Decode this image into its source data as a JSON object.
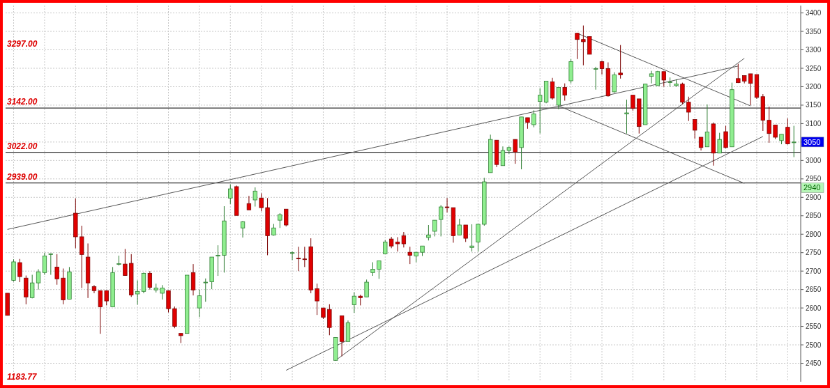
{
  "chart_data": {
    "type": "candlestick",
    "categories": [
      null,
      null,
      null,
      null,
      null,
      null,
      null,
      null,
      null,
      null,
      null,
      null,
      null,
      null,
      null,
      null,
      null,
      null,
      null,
      null,
      null,
      null,
      null,
      null,
      null,
      null,
      null,
      null,
      null,
      null,
      null,
      null,
      null,
      null,
      null,
      null,
      null,
      null,
      null,
      null,
      null,
      null,
      null,
      null,
      null,
      null,
      null,
      null,
      null,
      null,
      null,
      null,
      null,
      null,
      null,
      null,
      null,
      null,
      null,
      null,
      null,
      null,
      null,
      null,
      null,
      null,
      null,
      null,
      null,
      null,
      null,
      null,
      null,
      null,
      null,
      null,
      null,
      null,
      null,
      null,
      null,
      null,
      null,
      null,
      null,
      null,
      null,
      null,
      null,
      null,
      null,
      null,
      null,
      null,
      null,
      null,
      null,
      null,
      null,
      null,
      null,
      null,
      null,
      null,
      null,
      null,
      null,
      null,
      null,
      null,
      null,
      null,
      null,
      null,
      null,
      null,
      null,
      null,
      null,
      null,
      null,
      null,
      null,
      null,
      null,
      null,
      null,
      null
    ],
    "ohlc": [
      [
        2640,
        2640,
        2580,
        2580
      ],
      [
        2675,
        2732,
        2672,
        2725
      ],
      [
        2723,
        2733,
        2670,
        2685
      ],
      [
        2681,
        2688,
        2610,
        2630
      ],
      [
        2628,
        2690,
        2626,
        2668
      ],
      [
        2668,
        2705,
        2650,
        2698
      ],
      [
        2696,
        2750,
        2690,
        2741
      ],
      [
        2745,
        2748,
        2690,
        2747
      ],
      [
        2711,
        2746,
        2663,
        2679
      ],
      [
        2681,
        2707,
        2610,
        2622
      ],
      [
        2624,
        2711,
        2624,
        2698
      ],
      [
        2857,
        2897,
        2762,
        2793
      ],
      [
        2793,
        2823,
        2654,
        2745
      ],
      [
        2738,
        2775,
        2627,
        2668
      ],
      [
        2658,
        2662,
        2640,
        2647
      ],
      [
        2647,
        2647,
        2530,
        2603
      ],
      [
        2647,
        2647,
        2607,
        2619
      ],
      [
        2603,
        2711,
        2603,
        2696
      ],
      [
        2719,
        2742,
        2715,
        2720
      ],
      [
        2719,
        2760,
        2688,
        2688
      ],
      [
        2721,
        2746,
        2630,
        2635
      ],
      [
        2638,
        2675,
        2609,
        2645
      ],
      [
        2645,
        2696,
        2640,
        2694
      ],
      [
        2694,
        2700,
        2650,
        2656
      ],
      [
        2649,
        2666,
        2642,
        2654
      ],
      [
        2640,
        2662,
        2623,
        2654
      ],
      [
        2647,
        2647,
        2588,
        2598
      ],
      [
        2598,
        2604,
        2545,
        2550
      ],
      [
        2531,
        2531,
        2505,
        2525
      ],
      [
        2531,
        2689,
        2531,
        2689
      ],
      [
        2696,
        2719,
        2634,
        2649
      ],
      [
        2600,
        2650,
        2575,
        2633
      ],
      [
        2669,
        2680,
        2617,
        2670
      ],
      [
        2671,
        2738,
        2651,
        2738
      ],
      [
        2742,
        2770,
        2687,
        2743
      ],
      [
        2743,
        2876,
        2696,
        2836
      ],
      [
        2898,
        2935,
        2882,
        2923
      ],
      [
        2929,
        2932,
        2851,
        2851
      ],
      [
        2817,
        2836,
        2791,
        2834
      ],
      [
        2883,
        2904,
        2866,
        2866
      ],
      [
        2893,
        2927,
        2875,
        2917
      ],
      [
        2898,
        2911,
        2862,
        2872
      ],
      [
        2872,
        2898,
        2743,
        2796
      ],
      [
        2798,
        2828,
        2796,
        2817
      ],
      [
        2838,
        2857,
        2817,
        2853
      ],
      [
        2868,
        2868,
        2821,
        2825
      ],
      [
        2749,
        2753,
        2730,
        2750
      ],
      [
        2735,
        2766,
        2700,
        2734
      ],
      [
        2733,
        2766,
        2711,
        2732
      ],
      [
        2766,
        2789,
        2640,
        2649
      ],
      [
        2652,
        2666,
        2581,
        2619
      ],
      [
        2600,
        2600,
        2570,
        2575
      ],
      [
        2596,
        2610,
        2526,
        2547
      ],
      [
        2458,
        2520,
        2458,
        2520
      ],
      [
        2579,
        2579,
        2469,
        2509
      ],
      [
        2509,
        2566,
        2509,
        2560
      ],
      [
        2609,
        2643,
        2587,
        2632
      ],
      [
        2632,
        2636,
        2607,
        2628
      ],
      [
        2630,
        2677,
        2630,
        2670
      ],
      [
        2696,
        2724,
        2687,
        2705
      ],
      [
        2705,
        2728,
        2679,
        2728
      ],
      [
        2747,
        2784,
        2747,
        2779
      ],
      [
        2787,
        2793,
        2762,
        2768
      ],
      [
        2779,
        2792,
        2753,
        2774
      ],
      [
        2796,
        2806,
        2764,
        2774
      ],
      [
        2751,
        2766,
        2719,
        2743
      ],
      [
        2741,
        2751,
        2724,
        2751
      ],
      [
        2751,
        2768,
        2741,
        2768
      ],
      [
        2791,
        2825,
        2783,
        2798
      ],
      [
        2808,
        2838,
        2794,
        2838
      ],
      [
        2840,
        2879,
        2794,
        2874
      ],
      [
        2874,
        2898,
        2859,
        2872
      ],
      [
        2872,
        2872,
        2777,
        2796
      ],
      [
        2798,
        2842,
        2798,
        2825
      ],
      [
        2825,
        2825,
        2779,
        2789
      ],
      [
        2764,
        2827,
        2753,
        2768
      ],
      [
        2779,
        2827,
        2753,
        2827
      ],
      [
        2827,
        2953,
        2823,
        2942
      ],
      [
        2967,
        3070,
        2967,
        3057
      ],
      [
        3055,
        3055,
        2982,
        2989
      ],
      [
        2986,
        3038,
        2986,
        3027
      ],
      [
        3027,
        3038,
        3018,
        3035
      ],
      [
        3057,
        3057,
        2991,
        3023
      ],
      [
        3035,
        3118,
        2976,
        3118
      ],
      [
        3116,
        3116,
        3086,
        3103
      ],
      [
        3097,
        3136,
        3090,
        3126
      ],
      [
        3160,
        3196,
        3073,
        3177
      ],
      [
        3158,
        3215,
        3155,
        3215
      ],
      [
        3213,
        3224,
        3165,
        3169
      ],
      [
        3150,
        3198,
        3139,
        3198
      ],
      [
        3198,
        3209,
        3162,
        3177
      ],
      [
        3216,
        3275,
        3209,
        3268
      ],
      [
        3345,
        3345,
        3275,
        3328
      ],
      [
        3328,
        3366,
        3258,
        3322
      ],
      [
        3336,
        3336,
        3288,
        3288
      ],
      [
        3249,
        3254,
        3192,
        3249
      ],
      [
        3268,
        3271,
        3233,
        3249
      ],
      [
        3249,
        3266,
        3173,
        3175
      ],
      [
        3186,
        3239,
        3184,
        3232
      ],
      [
        3237,
        3313,
        3222,
        3232
      ],
      [
        3126,
        3165,
        3073,
        3129
      ],
      [
        3177,
        3177,
        3135,
        3141
      ],
      [
        3167,
        3167,
        3073,
        3092
      ],
      [
        3097,
        3207,
        3097,
        3207
      ],
      [
        3228,
        3243,
        3209,
        3235
      ],
      [
        3203,
        3243,
        3203,
        3241
      ],
      [
        3241,
        3241,
        3200,
        3218
      ],
      [
        3213,
        3225,
        3200,
        3213
      ],
      [
        3203,
        3220,
        3200,
        3207
      ],
      [
        3207,
        3211,
        3152,
        3158
      ],
      [
        3158,
        3173,
        3107,
        3131
      ],
      [
        3111,
        3111,
        3059,
        3082
      ],
      [
        3063,
        3063,
        3027,
        3035
      ],
      [
        3037,
        3152,
        3037,
        3077
      ],
      [
        3099,
        3103,
        2986,
        3020
      ],
      [
        3020,
        3075,
        3020,
        3057
      ],
      [
        3078,
        3094,
        3033,
        3035
      ],
      [
        3037,
        3211,
        3037,
        3192
      ],
      [
        3222,
        3262,
        3210,
        3211
      ],
      [
        3230,
        3230,
        3209,
        3215
      ],
      [
        3235,
        3235,
        3150,
        3209
      ],
      [
        3233,
        3233,
        3167,
        3171
      ],
      [
        3173,
        3180,
        3080,
        3109
      ],
      [
        3109,
        3146,
        3048,
        3073
      ],
      [
        3096,
        3096,
        3058,
        3063
      ],
      [
        3054,
        3071,
        3044,
        3071
      ],
      [
        3090,
        3114,
        3043,
        3045
      ],
      [
        3050,
        3094,
        3009,
        3050
      ]
    ],
    "series": [
      {
        "type": "line",
        "color": "#555555",
        "values": [
          2813,
          null,
          null,
          null,
          null,
          null,
          null,
          null,
          null,
          null,
          null,
          null,
          null,
          null,
          null,
          null,
          null,
          null,
          null,
          null,
          null,
          null,
          null,
          null,
          null,
          null,
          null,
          null,
          null,
          null,
          null,
          null,
          null,
          null,
          null,
          null,
          null,
          null,
          null,
          null,
          null,
          null,
          null,
          null,
          null,
          null,
          null,
          null,
          null,
          null,
          null,
          null,
          null,
          null,
          null,
          null,
          null,
          null,
          null,
          null,
          null,
          null,
          null,
          null,
          null,
          null,
          null,
          null,
          null,
          null,
          null,
          null,
          null,
          null,
          null,
          null,
          null,
          null,
          null,
          null,
          null,
          null,
          null,
          null,
          null,
          null,
          null,
          null,
          null,
          null,
          null,
          null,
          null,
          null,
          null,
          null,
          null,
          null,
          null,
          null,
          null,
          null,
          null,
          null,
          null,
          null,
          null,
          null,
          null,
          null,
          null,
          null,
          null,
          null,
          null,
          null,
          null,
          null,
          3256,
          null,
          null,
          null,
          null,
          null,
          null,
          null,
          null,
          null
        ]
      },
      {
        "type": "line",
        "color": "#555555",
        "values": [
          null,
          null,
          null,
          null,
          null,
          null,
          null,
          null,
          null,
          null,
          null,
          null,
          null,
          null,
          null,
          null,
          null,
          null,
          null,
          null,
          null,
          null,
          null,
          null,
          null,
          null,
          null,
          null,
          null,
          null,
          null,
          null,
          null,
          null,
          null,
          null,
          null,
          null,
          null,
          null,
          null,
          null,
          null,
          null,
          null,
          null,
          null,
          null,
          null,
          null,
          null,
          null,
          null,
          2458,
          null,
          null,
          null,
          null,
          null,
          null,
          null,
          null,
          null,
          null,
          null,
          null,
          null,
          null,
          null,
          null,
          null,
          null,
          null,
          null,
          null,
          null,
          null,
          null,
          null,
          null,
          null,
          null,
          null,
          null,
          null,
          null,
          null,
          null,
          null,
          null,
          null,
          null,
          null,
          null,
          null,
          null,
          null,
          null,
          null,
          null,
          null,
          null,
          null,
          null,
          null,
          null,
          null,
          null,
          null,
          null,
          null,
          null,
          null,
          null,
          null,
          null,
          null,
          null,
          null,
          3277,
          null,
          null,
          null,
          null,
          null,
          null,
          null,
          null
        ]
      },
      {
        "type": "line",
        "color": "#555555",
        "values": [
          null,
          null,
          null,
          null,
          null,
          null,
          null,
          null,
          null,
          null,
          null,
          null,
          null,
          null,
          null,
          null,
          null,
          null,
          null,
          null,
          null,
          null,
          null,
          null,
          null,
          null,
          null,
          null,
          null,
          null,
          null,
          null,
          null,
          null,
          null,
          null,
          null,
          null,
          null,
          null,
          null,
          null,
          null,
          null,
          null,
          2431,
          null,
          null,
          null,
          null,
          null,
          null,
          null,
          null,
          null,
          null,
          null,
          null,
          null,
          null,
          null,
          null,
          null,
          null,
          null,
          null,
          null,
          null,
          null,
          null,
          null,
          null,
          null,
          null,
          null,
          null,
          null,
          null,
          null,
          null,
          null,
          null,
          null,
          null,
          null,
          null,
          null,
          null,
          null,
          null,
          null,
          null,
          null,
          null,
          null,
          null,
          null,
          null,
          null,
          null,
          null,
          null,
          null,
          null,
          null,
          null,
          null,
          null,
          null,
          null,
          null,
          null,
          null,
          null,
          null,
          null,
          null,
          null,
          null,
          null,
          null,
          null,
          3065,
          null,
          null,
          null,
          null,
          null
        ]
      },
      {
        "type": "line",
        "color": "#555555",
        "values": [
          null,
          null,
          null,
          null,
          null,
          null,
          null,
          null,
          null,
          null,
          null,
          null,
          null,
          null,
          null,
          null,
          null,
          null,
          null,
          null,
          null,
          null,
          null,
          null,
          null,
          null,
          null,
          null,
          null,
          null,
          null,
          null,
          null,
          null,
          null,
          null,
          null,
          null,
          null,
          null,
          null,
          null,
          null,
          null,
          null,
          null,
          null,
          null,
          null,
          null,
          null,
          null,
          null,
          null,
          null,
          null,
          null,
          null,
          null,
          null,
          null,
          null,
          null,
          null,
          null,
          null,
          null,
          null,
          null,
          null,
          null,
          null,
          null,
          null,
          null,
          null,
          null,
          null,
          null,
          null,
          null,
          null,
          null,
          null,
          null,
          null,
          null,
          null,
          null,
          null,
          null,
          null,
          3345,
          null,
          null,
          null,
          null,
          null,
          null,
          null,
          null,
          null,
          null,
          null,
          null,
          null,
          null,
          null,
          null,
          null,
          null,
          null,
          null,
          null,
          null,
          null,
          null,
          null,
          null,
          null,
          3148,
          null,
          null,
          null,
          null,
          null,
          null,
          null
        ]
      },
      {
        "type": "line",
        "color": "#555555",
        "values": [
          null,
          null,
          null,
          null,
          null,
          null,
          null,
          null,
          null,
          null,
          null,
          null,
          null,
          null,
          null,
          null,
          null,
          null,
          null,
          null,
          null,
          null,
          null,
          null,
          null,
          null,
          null,
          null,
          null,
          null,
          null,
          null,
          null,
          null,
          null,
          null,
          null,
          null,
          null,
          null,
          null,
          null,
          null,
          null,
          null,
          null,
          null,
          null,
          null,
          null,
          null,
          null,
          null,
          null,
          null,
          null,
          null,
          null,
          null,
          null,
          null,
          null,
          null,
          null,
          null,
          null,
          null,
          null,
          null,
          null,
          null,
          null,
          null,
          null,
          null,
          null,
          null,
          null,
          null,
          null,
          null,
          null,
          null,
          null,
          null,
          null,
          null,
          null,
          null,
          3148,
          null,
          null,
          null,
          null,
          null,
          null,
          null,
          null,
          null,
          null,
          null,
          null,
          null,
          null,
          null,
          null,
          null,
          null,
          null,
          null,
          null,
          null,
          null,
          null,
          null,
          null,
          null,
          null,
          null,
          2938,
          null,
          null,
          null,
          null,
          null,
          null,
          null,
          null
        ]
      }
    ],
    "ylim": [
      2400,
      3420
    ],
    "yticks": [
      2450,
      2500,
      2550,
      2600,
      2650,
      2700,
      2750,
      2800,
      2850,
      2900,
      2950,
      3000,
      {
        "value": 3050,
        "label": null
      },
      3100,
      3150,
      3200,
      3250,
      3300,
      3350,
      3400
    ],
    "grid": true,
    "ref_lines": [
      {
        "axis": "y",
        "value": 3142,
        "label": "3142.00",
        "color": "#333333"
      },
      {
        "axis": "y",
        "value": 3022,
        "label": "3022.00",
        "color": "#333333"
      },
      {
        "axis": "y",
        "value": 2939,
        "label": "2939.00",
        "color": "#333333"
      }
    ],
    "annotations": [
      "3297.00",
      "1183.77",
      {
        "text": "3050",
        "y": 3050
      },
      "2940"
    ]
  }
}
